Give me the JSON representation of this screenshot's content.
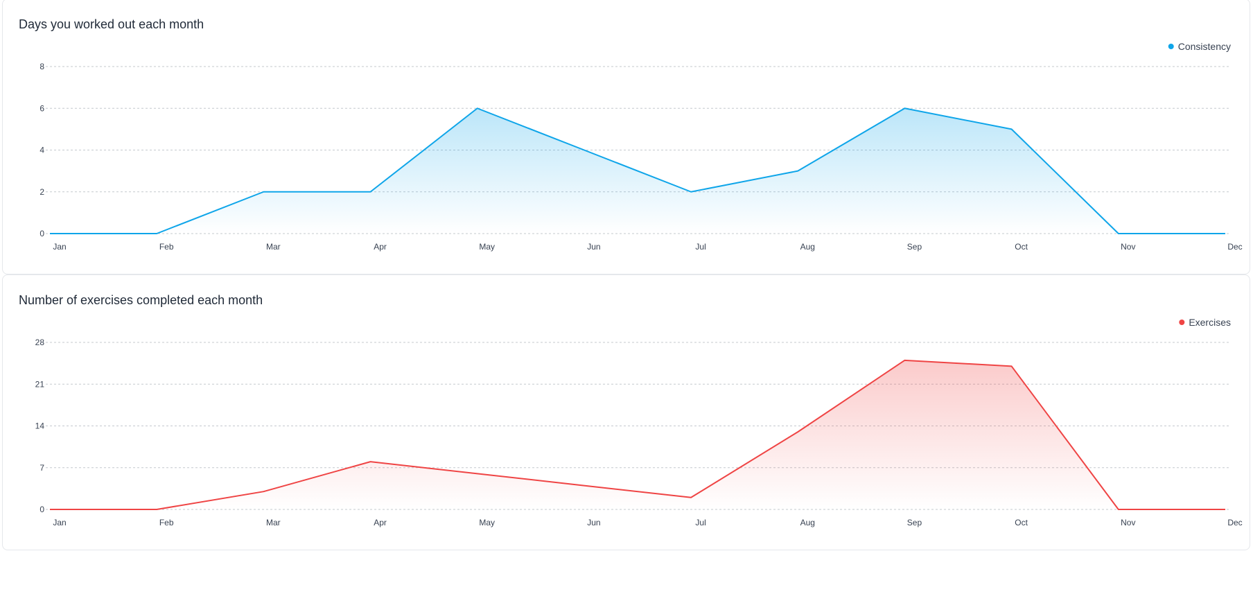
{
  "chart_data": [
    {
      "type": "area",
      "title": "Days you worked out each month",
      "categories": [
        "Jan",
        "Feb",
        "Mar",
        "Apr",
        "May",
        "Jun",
        "Jul",
        "Aug",
        "Sep",
        "Oct",
        "Nov",
        "Dec"
      ],
      "series": [
        {
          "name": "Consistency",
          "values": [
            0,
            0,
            2,
            2,
            6,
            4,
            2,
            3,
            6,
            5,
            0,
            0
          ],
          "color": "#0ea5e9"
        }
      ],
      "yticks": [
        0,
        2,
        4,
        6,
        8
      ],
      "ylim": [
        0,
        8
      ],
      "grid": true,
      "legend": "top-right"
    },
    {
      "type": "area",
      "title": "Number of exercises completed each month",
      "categories": [
        "Jan",
        "Feb",
        "Mar",
        "Apr",
        "May",
        "Jun",
        "Jul",
        "Aug",
        "Sep",
        "Oct",
        "Nov",
        "Dec"
      ],
      "series": [
        {
          "name": "Exercises",
          "values": [
            0,
            0,
            3,
            8,
            6,
            4,
            2,
            13,
            25,
            24,
            0,
            0
          ],
          "color": "#ef4444"
        }
      ],
      "yticks": [
        0,
        7,
        14,
        21,
        28
      ],
      "ylim": [
        0,
        28
      ],
      "grid": true,
      "legend": "top-right"
    }
  ]
}
